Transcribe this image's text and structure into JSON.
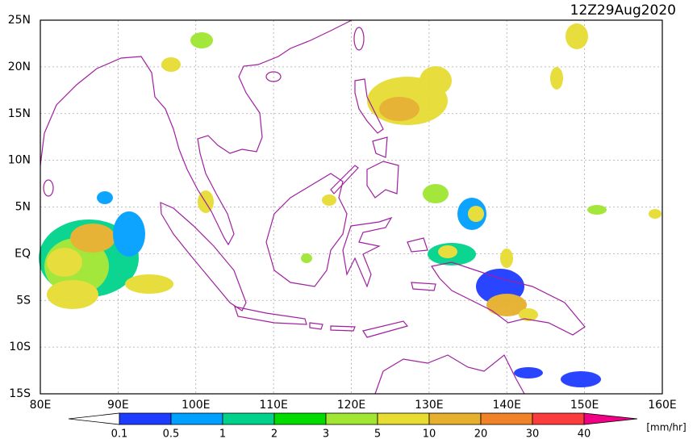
{
  "header": {
    "title": "12Z29Aug2020"
  },
  "map": {
    "lat_labels": [
      "25N",
      "20N",
      "15N",
      "10N",
      "5N",
      "EQ",
      "5S",
      "10S",
      "15S"
    ],
    "lon_labels": [
      "80E",
      "90E",
      "100E",
      "110E",
      "120E",
      "130E",
      "140E",
      "150E",
      "160E"
    ]
  },
  "colorbar": {
    "labels": [
      "0.1",
      "0.5",
      "1",
      "2",
      "3",
      "5",
      "10",
      "20",
      "30",
      "40"
    ],
    "unit": "[mm/hr]"
  }
}
